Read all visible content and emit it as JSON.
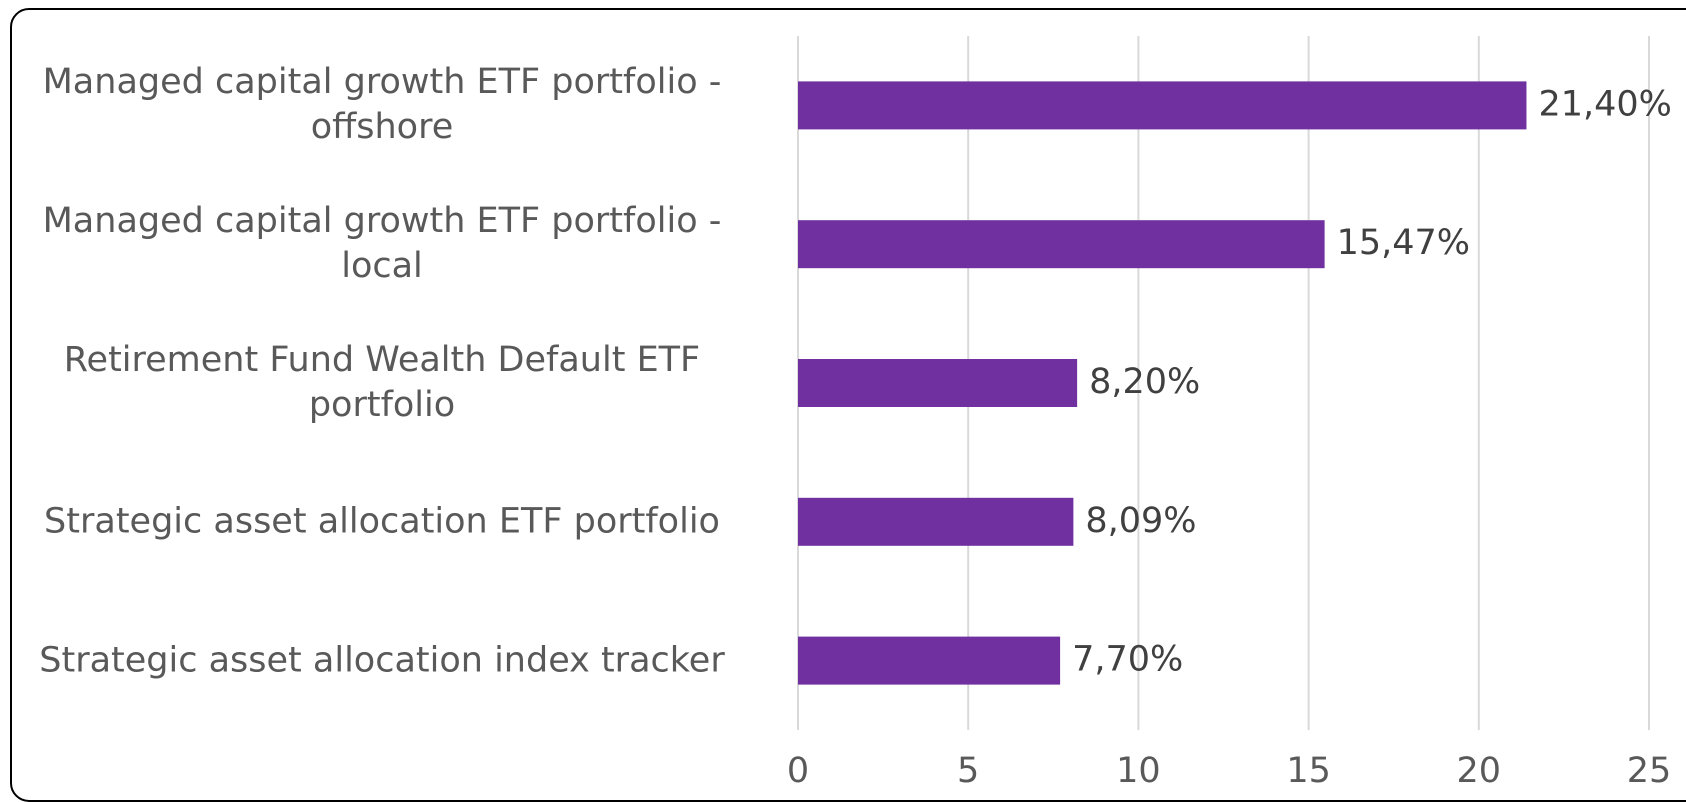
{
  "chart_data": {
    "type": "bar",
    "orientation": "horizontal",
    "categories": [
      "Managed capital growth ETF portfolio - offshore",
      "Managed capital growth ETF portfolio - local",
      "Retirement Fund Wealth Default ETF portfolio",
      "Strategic asset allocation ETF portfolio",
      "Strategic asset allocation index tracker"
    ],
    "values": [
      21.4,
      15.47,
      8.2,
      8.09,
      7.7
    ],
    "value_labels": [
      "21,40%",
      "15,47%",
      "8,20%",
      "8,09%",
      "7,70%"
    ],
    "color": "#7030a0",
    "xlim": [
      0,
      25
    ],
    "xticks": [
      0,
      5,
      10,
      15,
      20,
      25
    ],
    "grid": true
  }
}
